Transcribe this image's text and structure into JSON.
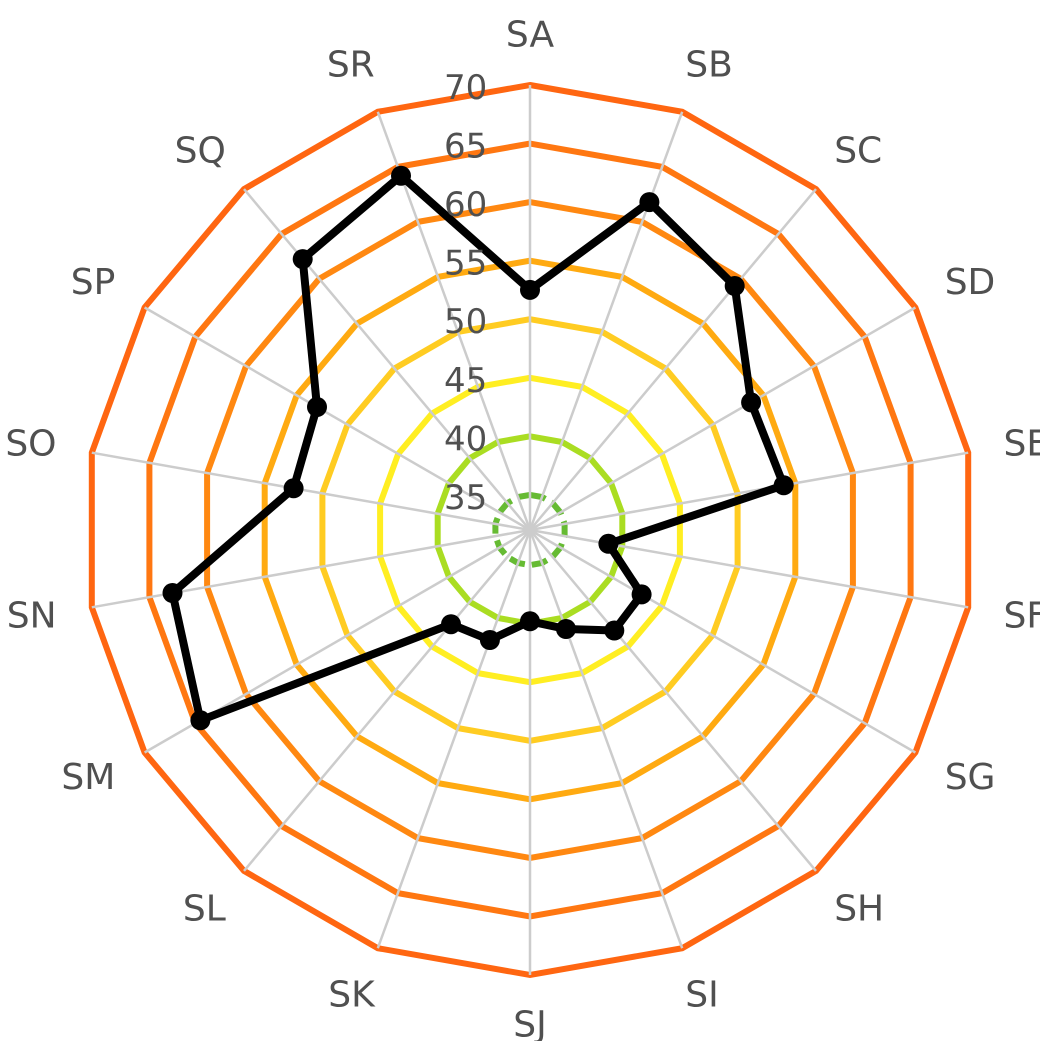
{
  "chart_data": {
    "type": "radar",
    "title": "",
    "categories": [
      "SA",
      "SB",
      "SC",
      "SD",
      "SE",
      "SF",
      "SG",
      "SH",
      "SI",
      "SJ",
      "SK",
      "SL",
      "SM",
      "SN",
      "SO",
      "SP",
      "SQ",
      "SR"
    ],
    "rlim": [
      32,
      70
    ],
    "ticks": [
      35,
      40,
      45,
      50,
      55,
      60,
      65,
      70
    ],
    "ring_colors": [
      "#66bb33",
      "#aadd22",
      "#ffee22",
      "#ffcc22",
      "#ffaa11",
      "#ff8811",
      "#ff7711",
      "#ff6611"
    ],
    "ring_dashes": [
      "dashed",
      "solid",
      "solid",
      "solid",
      "solid",
      "solid",
      "solid",
      "solid"
    ],
    "spoke_color": "#cccccc",
    "grid": true,
    "series": [
      {
        "color": "#000000",
        "values": [
          52.5,
          61.8,
          59.2,
          53.8,
          54.0,
          38.8,
          43.0,
          43.2,
          41.0,
          39.8,
          42.0,
          42.5,
          64.5,
          63.0,
          52.5,
          53.0,
          62.2,
          64.2
        ]
      }
    ]
  }
}
